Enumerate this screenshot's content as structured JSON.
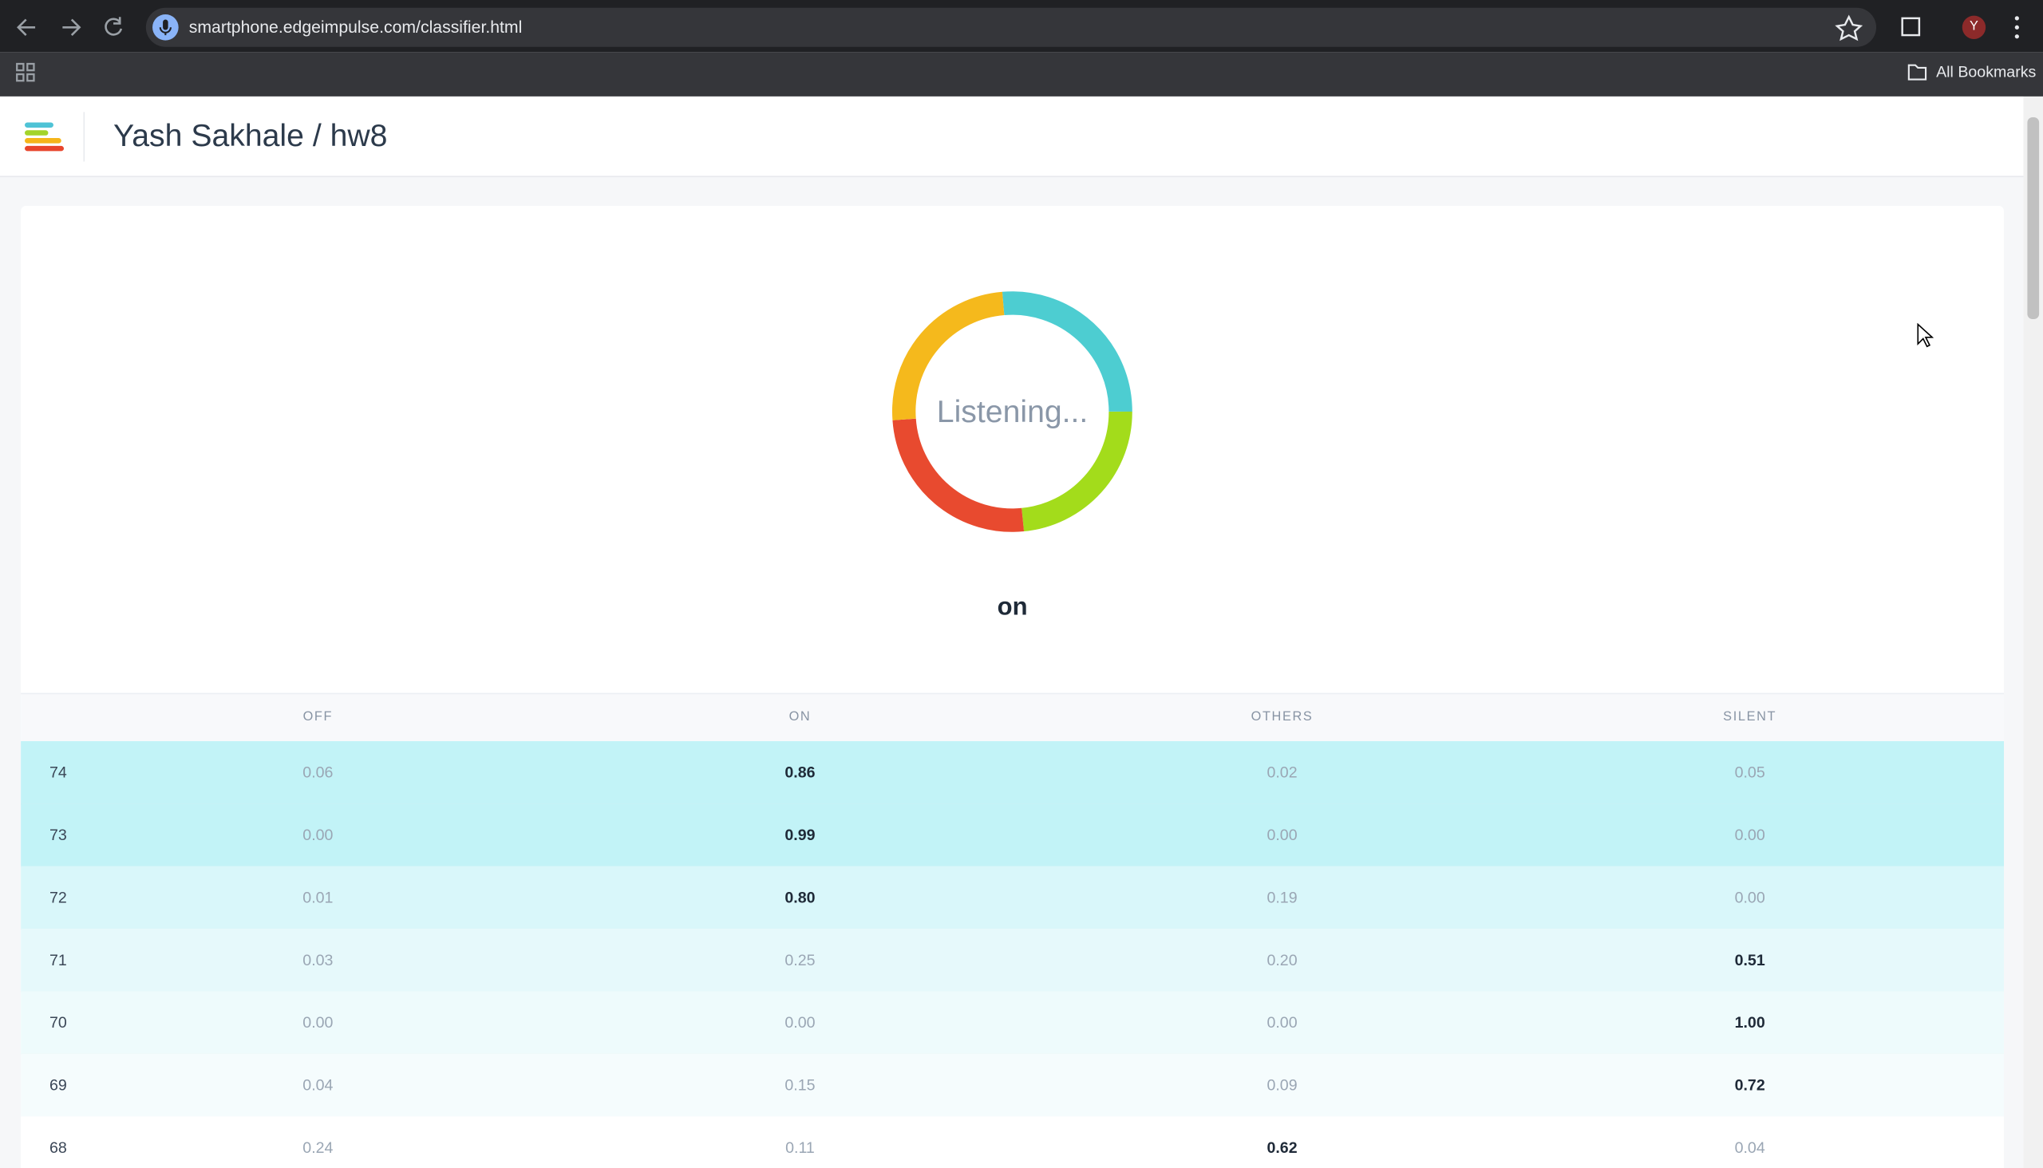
{
  "browser": {
    "url": "smartphone.edgeimpulse.com/classifier.html",
    "profile": "Y",
    "bookmarks": "All Bookmarks"
  },
  "header": {
    "title": "Yash Sakhale / hw8"
  },
  "classifier": {
    "status": "Listening...",
    "result": "on"
  },
  "table": {
    "columns": [
      "OFF",
      "ON",
      "OTHERS",
      "SILENT"
    ],
    "rows": [
      [
        "74",
        "0.06",
        "0.86",
        "0.02",
        "0.05"
      ],
      [
        "73",
        "0.00",
        "0.99",
        "0.00",
        "0.00"
      ],
      [
        "72",
        "0.01",
        "0.80",
        "0.19",
        "0.00"
      ],
      [
        "71",
        "0.03",
        "0.25",
        "0.20",
        "0.51"
      ],
      [
        "70",
        "0.00",
        "0.00",
        "0.00",
        "1.00"
      ],
      [
        "69",
        "0.04",
        "0.15",
        "0.09",
        "0.72"
      ],
      [
        "68",
        "0.24",
        "0.11",
        "0.62",
        "0.04"
      ]
    ]
  }
}
